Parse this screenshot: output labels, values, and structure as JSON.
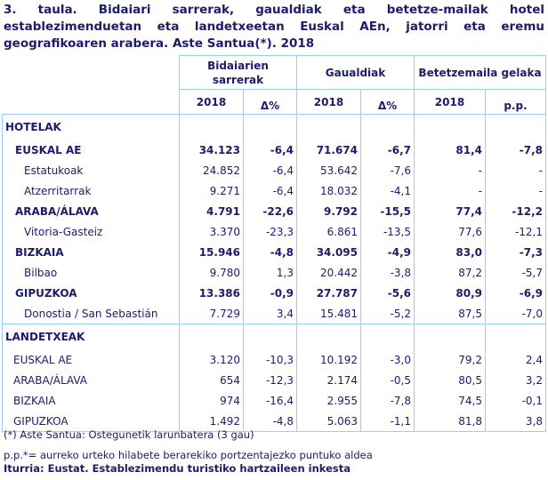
{
  "title": "3. taula. Bidaiari sarrerak, gaualdiak eta betetze-mailak hotel establezimenduetan eta landetxeetan Euskal AEn, jatorri eta eremu geografikoaren arabera. Aste Santua(*). 2018",
  "header": {
    "groups": [
      "Bidaiarien sarrerak",
      "Gaualdiak",
      "Betetzemaila gelaka"
    ],
    "sub": [
      "2018",
      "Δ%",
      "2018",
      "Δ%",
      "2018",
      "p.p."
    ]
  },
  "sections": [
    {
      "label": "HOTELAK",
      "rows": [
        {
          "label": "EUSKAL AE",
          "bold": true,
          "v": [
            "34.123",
            "-6,4",
            "71.674",
            "-6,7",
            "81,4",
            "-7,8"
          ]
        },
        {
          "label": "Estatukoak",
          "v": [
            "24.852",
            "-6,4",
            "53.642",
            "-7,6",
            "-",
            "-"
          ]
        },
        {
          "label": "Atzerritarrak",
          "v": [
            "9.271",
            "-6,4",
            "18.032",
            "-4,1",
            "-",
            "-"
          ]
        },
        {
          "label": "ARABA/ÁLAVA",
          "bold": true,
          "v": [
            "4.791",
            "-22,6",
            "9.792",
            "-15,5",
            "77,4",
            "-12,2"
          ]
        },
        {
          "label": "Vitoria-Gasteiz",
          "v": [
            "3.370",
            "-23,3",
            "6.861",
            "-13,5",
            "77,6",
            "-12,1"
          ]
        },
        {
          "label": "BIZKAIA",
          "bold": true,
          "v": [
            "15.946",
            "-4,8",
            "34.095",
            "-4,9",
            "83,0",
            "-7,3"
          ]
        },
        {
          "label": "Bilbao",
          "v": [
            "9.780",
            "1,3",
            "20.442",
            "-3,8",
            "87,2",
            "-5,7"
          ]
        },
        {
          "label": "GIPUZKOA",
          "bold": true,
          "v": [
            "13.386",
            "-0,9",
            "27.787",
            "-5,6",
            "80,9",
            "-6,9"
          ]
        },
        {
          "label": "Donostia / San Sebastián",
          "v": [
            "7.729",
            "3,4",
            "15.481",
            "-5,2",
            "87,5",
            "-7,0"
          ]
        }
      ]
    },
    {
      "label": "LANDETXEAK",
      "rows": [
        {
          "label": "EUSKAL AE",
          "v": [
            "3.120",
            "-10,3",
            "10.192",
            "-3,0",
            "79,2",
            "2,4"
          ]
        },
        {
          "label": "ARABA/ÁLAVA",
          "v": [
            "654",
            "-12,3",
            "2.174",
            "-0,5",
            "80,5",
            "3,2"
          ]
        },
        {
          "label": "BIZKAIA",
          "v": [
            "974",
            "-16,4",
            "2.955",
            "-7,8",
            "74,5",
            "-0,1"
          ]
        },
        {
          "label": "GIPUZKOA",
          "v": [
            "1.492",
            "-4,8",
            "5.063",
            "-1,1",
            "81,8",
            "3,8"
          ]
        }
      ]
    }
  ],
  "footnotes": [
    "(*) Aste Santua: Ostegunetik larunbatera (3 gau)",
    "p.p.*= aurreko urteko hilabete berarekiko portzentajezko puntuko aldea"
  ],
  "source": "Iturria: Eustat. Establezimendu turistiko hartzaileen inkesta",
  "colors": {
    "text": "#1c1c6b",
    "border": "#99ccff"
  }
}
